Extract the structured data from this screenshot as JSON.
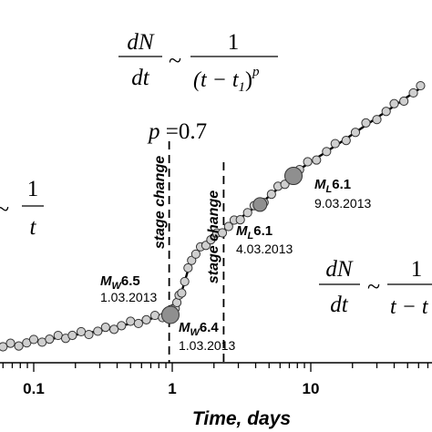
{
  "chart_data": {
    "type": "scatter",
    "xlabel": "Time, days",
    "x_scale": "log",
    "x_ticks": [
      {
        "value": 0.1,
        "label": "0.1"
      },
      {
        "value": 1,
        "label": "1"
      },
      {
        "value": 10,
        "label": "10"
      }
    ],
    "formulas": {
      "top": {
        "num": "dN",
        "den": "dt",
        "tilde": "~",
        "frac_num": "1",
        "frac_den_open": "(t − t",
        "frac_den_sub": "1",
        "frac_den_close": ")",
        "frac_den_sup": "p"
      },
      "left": {
        "tilde": "~",
        "frac_num": "1",
        "frac_den": "t"
      },
      "right": {
        "num": "dN",
        "den": "dt",
        "tilde": "~",
        "frac_num": "1",
        "frac_den": "t − t"
      }
    },
    "p_label": {
      "p": "p",
      "value": " =0.7"
    },
    "stage_labels": [
      "stage change",
      "stage change"
    ],
    "stage_lines_x": [
      0.95,
      2.35
    ],
    "annotations": [
      {
        "m": "M",
        "sub": "W",
        "mag": "6.5",
        "date": "1.03.2013",
        "x": 0.95
      },
      {
        "m": "M",
        "sub": "W",
        "mag": "6.4",
        "date": "1.03.2013",
        "x": 0.97
      },
      {
        "m": "M",
        "sub": "L",
        "mag": "6.1",
        "date": "4.03.2013",
        "x": 4.3
      },
      {
        "m": "M",
        "sub": "L",
        "mag": "6.1",
        "date": "9.03.2013",
        "x": 7.5
      }
    ],
    "big_events": [
      {
        "x": 0.97,
        "size": "large"
      },
      {
        "x": 4.3,
        "size": "medium"
      },
      {
        "x": 7.5,
        "size": "large"
      }
    ],
    "points_x": [
      0.03,
      0.035,
      0.04,
      0.046,
      0.052,
      0.06,
      0.068,
      0.078,
      0.089,
      0.1,
      0.115,
      0.13,
      0.15,
      0.17,
      0.19,
      0.22,
      0.25,
      0.29,
      0.33,
      0.38,
      0.43,
      0.5,
      0.57,
      0.65,
      0.75,
      0.85,
      0.93,
      0.96,
      0.98,
      1.0,
      1.02,
      1.05,
      1.08,
      1.12,
      1.17,
      1.23,
      1.3,
      1.38,
      1.48,
      1.6,
      1.75,
      1.9,
      2.1,
      2.3,
      2.55,
      2.8,
      3.1,
      3.5,
      3.9,
      4.6,
      5.2,
      5.8,
      6.5,
      8.3,
      9.5,
      11,
      13,
      15,
      18,
      21,
      25,
      30,
      35,
      40,
      47,
      55,
      62
    ],
    "fit_segments": [
      {
        "x": [
          0.03,
          0.95
        ]
      },
      {
        "x": [
          0.95,
          2.35
        ]
      },
      {
        "x": [
          2.35,
          62
        ]
      }
    ]
  }
}
